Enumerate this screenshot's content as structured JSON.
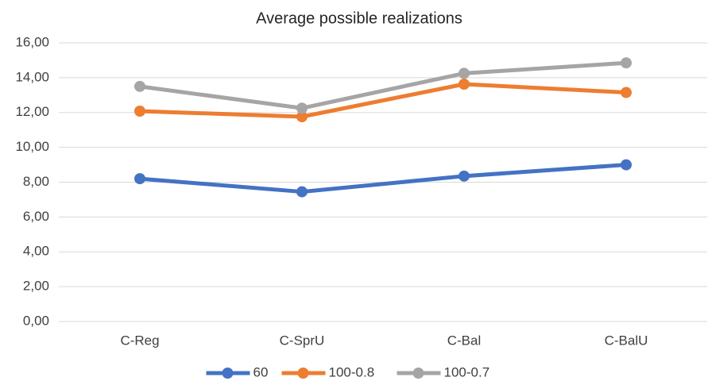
{
  "chart_data": {
    "type": "line",
    "title": "Average possible realizations",
    "categories": [
      "C-Reg",
      "C-SprU",
      "C-Bal",
      "C-BalU"
    ],
    "series": [
      {
        "name": "60",
        "color": "#4472c4",
        "values": [
          8.2,
          7.45,
          8.35,
          9.0
        ]
      },
      {
        "name": "100-0.8",
        "color": "#ed7d31",
        "values": [
          12.08,
          11.76,
          13.63,
          13.15
        ]
      },
      {
        "name": "100-0.7",
        "color": "#a5a5a5",
        "values": [
          13.5,
          12.25,
          14.25,
          14.85
        ]
      }
    ],
    "ylim": [
      0,
      16
    ],
    "yticks": [
      {
        "value": 0,
        "label": "0,00"
      },
      {
        "value": 2,
        "label": "2,00"
      },
      {
        "value": 4,
        "label": "4,00"
      },
      {
        "value": 6,
        "label": "6,00"
      },
      {
        "value": 8,
        "label": "8,00"
      },
      {
        "value": 10,
        "label": "10,00"
      },
      {
        "value": 12,
        "label": "12,00"
      },
      {
        "value": 14,
        "label": "14,00"
      },
      {
        "value": 16,
        "label": "16,00"
      }
    ],
    "grid": true,
    "legend": "bottom"
  }
}
